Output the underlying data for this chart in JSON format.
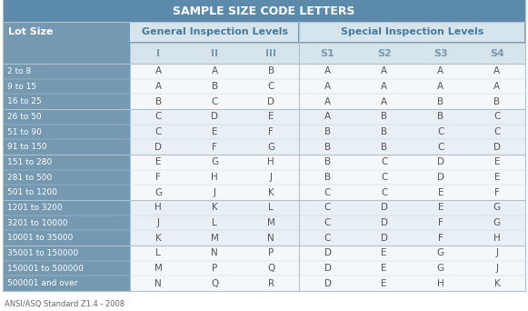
{
  "title": "SAMPLE SIZE CODE LETTERS",
  "subtitle": "ANSI/ASQ Standard Z1.4 - 2008",
  "col_header_1": "General Inspection Levels",
  "col_header_2": "Special Inspection Levels",
  "col_subheaders": [
    "I",
    "II",
    "III",
    "S1",
    "S2",
    "S3",
    "S4"
  ],
  "row_header": "Lot Size",
  "lot_groups": [
    [
      "2 to 8",
      "9 to 15",
      "16 to 25"
    ],
    [
      "26 to 50",
      "51 to 90",
      "91 to 150"
    ],
    [
      "151 to 280",
      "281 to 500",
      "501 to 1200"
    ],
    [
      "1201 to 3200",
      "3201 to 10000",
      "10001 to 35000"
    ],
    [
      "35001 to 150000",
      "150001 to 500000",
      "500001 and over"
    ]
  ],
  "data": [
    [
      "A",
      "A",
      "B",
      "A",
      "A",
      "A",
      "A"
    ],
    [
      "A",
      "B",
      "C",
      "A",
      "A",
      "A",
      "A"
    ],
    [
      "B",
      "C",
      "D",
      "A",
      "A",
      "B",
      "B"
    ],
    [
      "C",
      "D",
      "E",
      "A",
      "B",
      "B",
      "C"
    ],
    [
      "C",
      "E",
      "F",
      "B",
      "B",
      "C",
      "C"
    ],
    [
      "D",
      "F",
      "G",
      "B",
      "B",
      "C",
      "D"
    ],
    [
      "E",
      "G",
      "H",
      "B",
      "C",
      "D",
      "E"
    ],
    [
      "F",
      "H",
      "J",
      "B",
      "C",
      "D",
      "E"
    ],
    [
      "G",
      "J",
      "K",
      "C",
      "C",
      "E",
      "F"
    ],
    [
      "H",
      "K",
      "L",
      "C",
      "D",
      "E",
      "G"
    ],
    [
      "J",
      "L",
      "M",
      "C",
      "D",
      "F",
      "G"
    ],
    [
      "K",
      "M",
      "N",
      "C",
      "D",
      "F",
      "H"
    ],
    [
      "L",
      "N",
      "P",
      "D",
      "E",
      "G",
      "J"
    ],
    [
      "M",
      "P",
      "Q",
      "D",
      "E",
      "G",
      "J"
    ],
    [
      "N",
      "Q",
      "R",
      "D",
      "E",
      "H",
      "K"
    ]
  ],
  "bg_title": "#5b8aaa",
  "bg_lot_col": "#7499b0",
  "bg_col_header_light": "#d6e4ec",
  "bg_data_white": "#f5f8fa",
  "bg_data_stripe": "#e8f0f5",
  "text_title": "#ffffff",
  "text_lot": "#ffffff",
  "text_lot_header": "#ffffff",
  "text_col_header": "#4a7a9b",
  "text_subheader": "#7a9ab0",
  "text_data": "#555555",
  "text_subtitle": "#666666",
  "border_light": "#c0cdd6",
  "border_group": "#b0c0cc"
}
